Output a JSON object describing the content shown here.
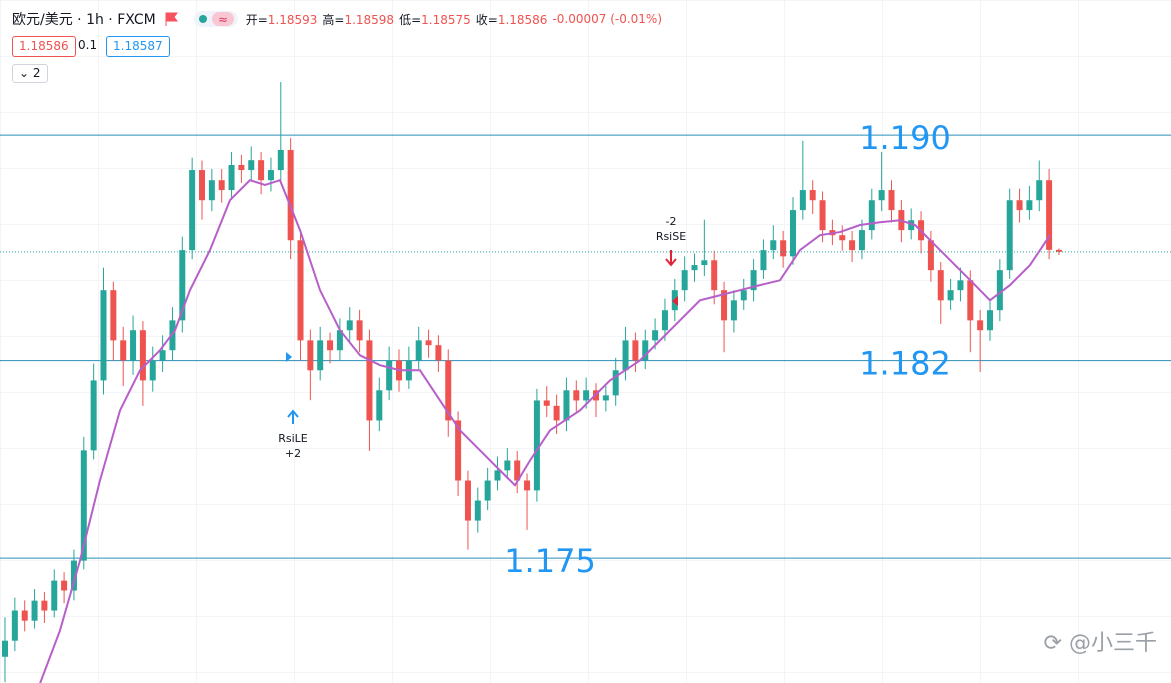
{
  "header": {
    "symbol": "欧元/美元 · 1h · FXCM",
    "ohlc": [
      {
        "label": "开=",
        "value": "1.18593"
      },
      {
        "label": "高=",
        "value": "1.18598"
      },
      {
        "label": "低=",
        "value": "1.18575"
      },
      {
        "label": "收=",
        "value": "1.18586"
      }
    ],
    "change": "-0.00007 (-0.01%)",
    "sell": "1.18586",
    "spread": "0.1",
    "buy": "1.18587",
    "indicators": "2"
  },
  "chart_data": {
    "type": "candlestick",
    "ylim": [
      1.17057,
      1.19479
    ],
    "up_color": "#26a69a",
    "down_color": "#ef5350",
    "candles": [
      [
        1.1715,
        1.1729,
        1.1706,
        1.17207
      ],
      [
        1.17207,
        1.1736,
        1.1717,
        1.17314
      ],
      [
        1.17314,
        1.1735,
        1.1724,
        1.17278
      ],
      [
        1.17278,
        1.1739,
        1.1725,
        1.17349
      ],
      [
        1.17349,
        1.1738,
        1.1727,
        1.17314
      ],
      [
        1.17314,
        1.1746,
        1.1729,
        1.1742
      ],
      [
        1.1742,
        1.1745,
        1.1734,
        1.17385
      ],
      [
        1.17385,
        1.1753,
        1.1735,
        1.17491
      ],
      [
        1.17491,
        1.1793,
        1.1746,
        1.17882
      ],
      [
        1.17882,
        1.1819,
        1.1785,
        1.1813
      ],
      [
        1.1813,
        1.1853,
        1.1808,
        1.1845
      ],
      [
        1.1845,
        1.1848,
        1.182,
        1.18272
      ],
      [
        1.18272,
        1.1832,
        1.1811,
        1.18201
      ],
      [
        1.18201,
        1.1836,
        1.1815,
        1.18308
      ],
      [
        1.18308,
        1.1834,
        1.1804,
        1.1813
      ],
      [
        1.1813,
        1.1825,
        1.1809,
        1.18201
      ],
      [
        1.18201,
        1.1829,
        1.1816,
        1.18237
      ],
      [
        1.18237,
        1.1839,
        1.182,
        1.18343
      ],
      [
        1.18343,
        1.1864,
        1.183,
        1.18592
      ],
      [
        1.18592,
        1.1892,
        1.1856,
        1.18876
      ],
      [
        1.18876,
        1.1891,
        1.187,
        1.18769
      ],
      [
        1.18769,
        1.1888,
        1.1873,
        1.1884
      ],
      [
        1.1884,
        1.1888,
        1.1876,
        1.18805
      ],
      [
        1.18805,
        1.1894,
        1.1877,
        1.18894
      ],
      [
        1.18894,
        1.1893,
        1.1883,
        1.18876
      ],
      [
        1.18876,
        1.1896,
        1.1884,
        1.18911
      ],
      [
        1.18911,
        1.1894,
        1.1879,
        1.1884
      ],
      [
        1.1884,
        1.1892,
        1.188,
        1.18876
      ],
      [
        1.18876,
        1.19188,
        1.1884,
        1.18947
      ],
      [
        1.18947,
        1.1899,
        1.1856,
        1.18627
      ],
      [
        1.18627,
        1.1866,
        1.182,
        1.18272
      ],
      [
        1.18272,
        1.1831,
        1.1806,
        1.18166
      ],
      [
        1.18166,
        1.1832,
        1.1813,
        1.18272
      ],
      [
        1.18272,
        1.183,
        1.1819,
        1.18237
      ],
      [
        1.18237,
        1.1835,
        1.182,
        1.18308
      ],
      [
        1.18308,
        1.1839,
        1.1827,
        1.18343
      ],
      [
        1.18343,
        1.1838,
        1.1823,
        1.18272
      ],
      [
        1.18272,
        1.1831,
        1.1788,
        1.17988
      ],
      [
        1.17988,
        1.1814,
        1.1795,
        1.18095
      ],
      [
        1.18095,
        1.1825,
        1.1806,
        1.18201
      ],
      [
        1.18201,
        1.1824,
        1.1809,
        1.1813
      ],
      [
        1.1813,
        1.1825,
        1.181,
        1.18201
      ],
      [
        1.18201,
        1.1832,
        1.1817,
        1.18272
      ],
      [
        1.18272,
        1.1831,
        1.1821,
        1.18255
      ],
      [
        1.18255,
        1.1829,
        1.1816,
        1.18201
      ],
      [
        1.18201,
        1.1824,
        1.1793,
        1.17988
      ],
      [
        1.17988,
        1.1802,
        1.1772,
        1.17775
      ],
      [
        1.17775,
        1.1781,
        1.1753,
        1.17633
      ],
      [
        1.17633,
        1.1775,
        1.1759,
        1.17704
      ],
      [
        1.17704,
        1.1782,
        1.1767,
        1.17775
      ],
      [
        1.17775,
        1.1786,
        1.1774,
        1.17811
      ],
      [
        1.17811,
        1.1789,
        1.1778,
        1.17846
      ],
      [
        1.17846,
        1.1788,
        1.1773,
        1.17775
      ],
      [
        1.17775,
        1.178,
        1.176,
        1.1774
      ],
      [
        1.1774,
        1.181,
        1.177,
        1.18059
      ],
      [
        1.18059,
        1.1811,
        1.18,
        1.1804
      ],
      [
        1.1804,
        1.1808,
        1.1794,
        1.17988
      ],
      [
        1.17988,
        1.1814,
        1.1795,
        1.18095
      ],
      [
        1.18095,
        1.1813,
        1.1802,
        1.18059
      ],
      [
        1.18059,
        1.1814,
        1.1803,
        1.18095
      ],
      [
        1.18095,
        1.1812,
        1.18,
        1.18059
      ],
      [
        1.18059,
        1.1811,
        1.1802,
        1.18077
      ],
      [
        1.18077,
        1.1821,
        1.1804,
        1.18166
      ],
      [
        1.18166,
        1.1832,
        1.1813,
        1.18272
      ],
      [
        1.18272,
        1.183,
        1.1816,
        1.18201
      ],
      [
        1.18201,
        1.1831,
        1.1817,
        1.18272
      ],
      [
        1.18272,
        1.1835,
        1.1824,
        1.18308
      ],
      [
        1.18308,
        1.1842,
        1.1827,
        1.18379
      ],
      [
        1.18379,
        1.1849,
        1.1834,
        1.1845
      ],
      [
        1.1845,
        1.1857,
        1.1841,
        1.18521
      ],
      [
        1.18521,
        1.1858,
        1.1848,
        1.18539
      ],
      [
        1.18539,
        1.187,
        1.185,
        1.18556
      ],
      [
        1.18556,
        1.1859,
        1.184,
        1.1845
      ],
      [
        1.1845,
        1.1848,
        1.1823,
        1.18343
      ],
      [
        1.18343,
        1.1845,
        1.183,
        1.18414
      ],
      [
        1.18414,
        1.1849,
        1.1838,
        1.1845
      ],
      [
        1.1845,
        1.1856,
        1.1841,
        1.18521
      ],
      [
        1.18521,
        1.1863,
        1.1849,
        1.18592
      ],
      [
        1.18592,
        1.1868,
        1.1856,
        1.18627
      ],
      [
        1.18627,
        1.1866,
        1.1853,
        1.1857
      ],
      [
        1.1857,
        1.1878,
        1.1854,
        1.18734
      ],
      [
        1.18734,
        1.1898,
        1.187,
        1.18805
      ],
      [
        1.18805,
        1.1884,
        1.1872,
        1.18769
      ],
      [
        1.18769,
        1.188,
        1.1862,
        1.18663
      ],
      [
        1.18663,
        1.187,
        1.1861,
        1.18645
      ],
      [
        1.18645,
        1.1868,
        1.1859,
        1.18627
      ],
      [
        1.18627,
        1.1866,
        1.1855,
        1.18592
      ],
      [
        1.18592,
        1.187,
        1.1856,
        1.18663
      ],
      [
        1.18663,
        1.1881,
        1.1863,
        1.18769
      ],
      [
        1.18769,
        1.1894,
        1.1873,
        1.18805
      ],
      [
        1.18805,
        1.1884,
        1.1869,
        1.18734
      ],
      [
        1.18734,
        1.1877,
        1.1862,
        1.18663
      ],
      [
        1.18663,
        1.1874,
        1.1863,
        1.18698
      ],
      [
        1.18698,
        1.1873,
        1.1858,
        1.18627
      ],
      [
        1.18627,
        1.1866,
        1.1848,
        1.18521
      ],
      [
        1.18521,
        1.1855,
        1.1833,
        1.18414
      ],
      [
        1.18414,
        1.1849,
        1.1838,
        1.1845
      ],
      [
        1.1845,
        1.1853,
        1.1841,
        1.18485
      ],
      [
        1.18485,
        1.1852,
        1.1823,
        1.18343
      ],
      [
        1.18343,
        1.1838,
        1.1816,
        1.18308
      ],
      [
        1.18308,
        1.1842,
        1.1827,
        1.18379
      ],
      [
        1.18379,
        1.1856,
        1.1834,
        1.18521
      ],
      [
        1.18521,
        1.1881,
        1.1849,
        1.18769
      ],
      [
        1.18769,
        1.1881,
        1.1869,
        1.18734
      ],
      [
        1.18734,
        1.1882,
        1.187,
        1.18769
      ],
      [
        1.18769,
        1.1891,
        1.1873,
        1.1884
      ],
      [
        1.1884,
        1.1888,
        1.1856,
        1.18593
      ],
      [
        1.18593,
        1.18598,
        1.18575,
        1.18586
      ]
    ],
    "ma": {
      "color": "#b75fc9",
      "x": [
        4.55,
        6.58,
        8.61,
        10.64,
        12.68,
        14.71,
        16.74,
        18.26,
        19.78,
        21.81,
        23.84,
        25.87,
        27.4,
        28.92,
        30.95,
        32.98,
        35.01,
        37.04,
        39.07,
        41.1,
        43.13,
        45.16,
        47.19,
        49.22,
        51.25,
        52.78,
        54.3,
        56.33,
        59.38,
        62.42,
        65.47,
        67.5,
        69.53,
        71.56,
        73.59,
        75.62,
        77.65,
        79.68,
        81.71,
        83.74,
        85.77,
        87.8,
        89.83,
        91.86,
        93.39,
        95.42,
        97.45,
        99.48,
        101.0,
        103.03,
        105.06,
        107.09
      ],
      "values": [
        1.17055,
        1.17243,
        1.17491,
        1.17775,
        1.18024,
        1.18166,
        1.18237,
        1.18308,
        1.1845,
        1.18592,
        1.18769,
        1.1884,
        1.18823,
        1.1884,
        1.18663,
        1.1845,
        1.18308,
        1.18219,
        1.18184,
        1.18166,
        1.18166,
        1.18059,
        1.17953,
        1.17882,
        1.17811,
        1.17758,
        1.17846,
        1.17953,
        1.18024,
        1.1813,
        1.18201,
        1.18272,
        1.18343,
        1.18414,
        1.18432,
        1.1845,
        1.18468,
        1.18485,
        1.18592,
        1.18645,
        1.18656,
        1.18681,
        1.18691,
        1.18698,
        1.18681,
        1.1861,
        1.18539,
        1.18468,
        1.18414,
        1.18468,
        1.18539,
        1.18645
      ]
    },
    "levels": [
      {
        "value": 1.19,
        "label": "1.190"
      },
      {
        "value": 1.182,
        "label": "1.182"
      },
      {
        "value": 1.175,
        "label": "1.175"
      }
    ],
    "level_color": "#2a8fb8",
    "level_label_color": "#2196f3",
    "signals": [
      {
        "name": "RsiLE",
        "size": "+2"
      },
      {
        "name": "RsiSE",
        "size": "-2"
      }
    ]
  },
  "watermark": "@小三千"
}
